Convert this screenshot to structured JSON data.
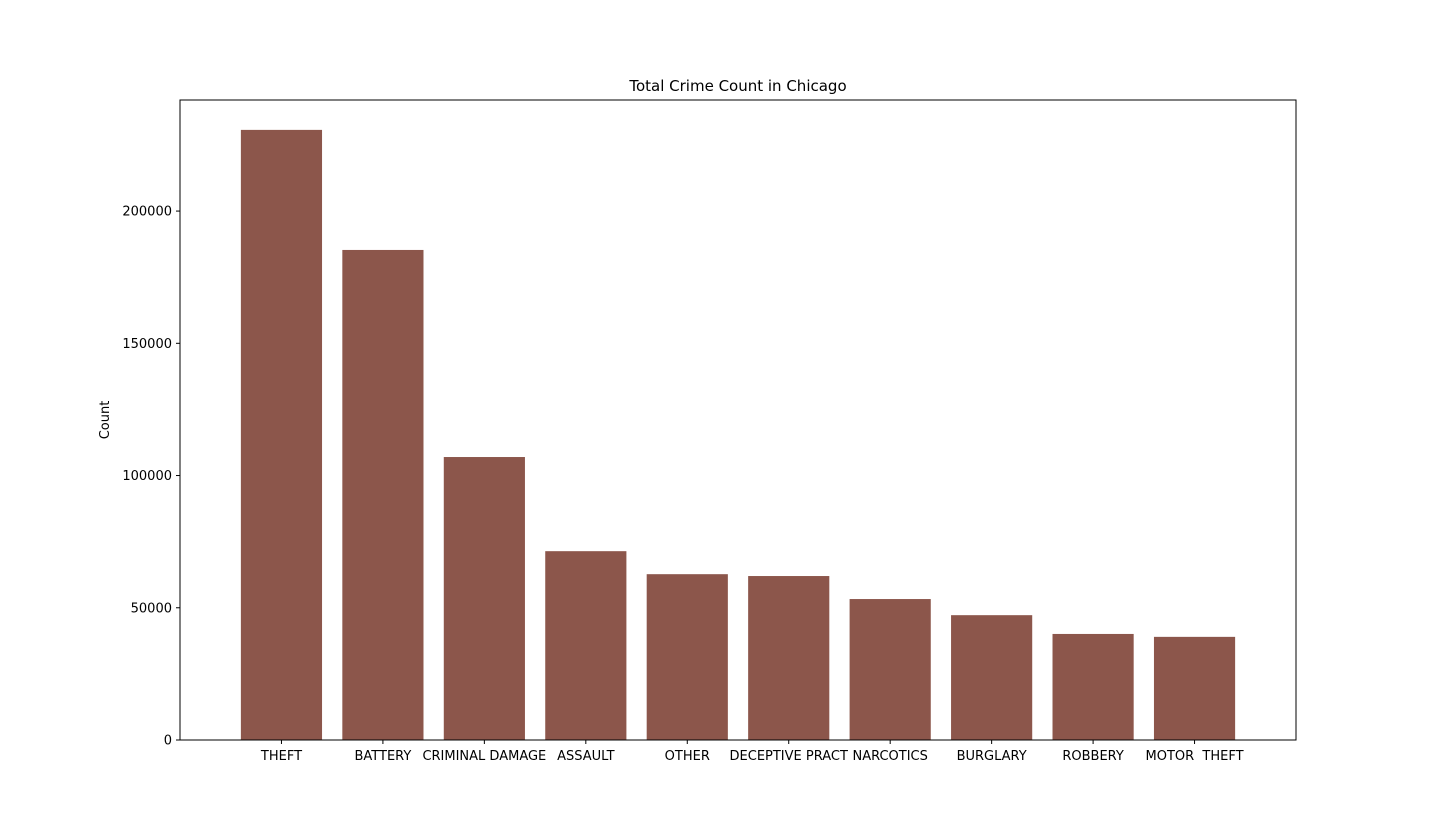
{
  "chart_data": {
    "type": "bar",
    "title": "Total Crime Count in Chicago",
    "xlabel": "",
    "ylabel": "Count",
    "categories": [
      "THEFT",
      "BATTERY",
      "CRIMINAL DAMAGE",
      "ASSAULT",
      "OTHER",
      "DECEPTIVE PRACT",
      "NARCOTICS",
      "BURGLARY",
      "ROBBERY",
      "MOTOR  THEFT"
    ],
    "values": [
      230700,
      185300,
      107000,
      71400,
      62700,
      62000,
      53300,
      47200,
      40100,
      39000
    ],
    "ylim": [
      0,
      242000
    ],
    "yticks": [
      0,
      50000,
      100000,
      150000,
      200000
    ],
    "ytick_labels": [
      "0",
      "50000",
      "100000",
      "150000",
      "200000"
    ],
    "bar_color": "#8c564b",
    "grid": false,
    "legend": "none"
  }
}
